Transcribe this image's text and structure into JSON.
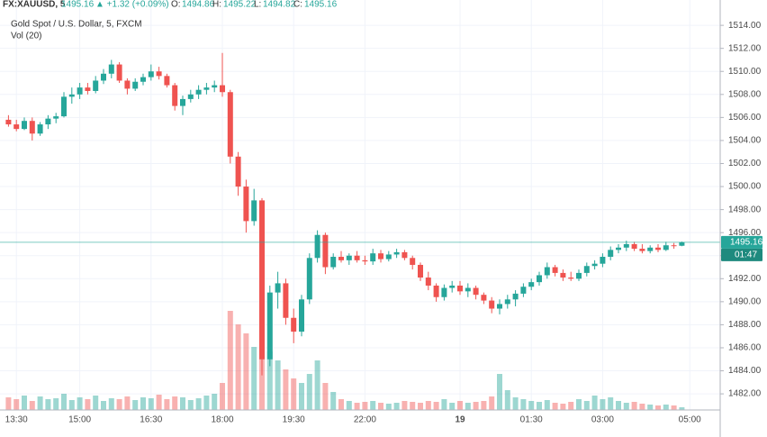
{
  "header": {
    "symbol": "FX:XAUUSD, 5",
    "last": "1495.16",
    "change": "▲ +1.32 (+0.09%)",
    "o_label": "O:",
    "o": "1494.86",
    "h_label": "H:",
    "h": "1495.22",
    "l_label": "L:",
    "l": "1494.82",
    "c_label": "C:",
    "c": "1495.16"
  },
  "chart_data": {
    "type": "candlestick",
    "title": "Gold Spot / U.S. Dollar, 5, FXCM",
    "volume_label": "Vol (20)",
    "price_label": "1495.16",
    "countdown": "01:47",
    "up_color": "#26a69a",
    "down_color": "#ef5350",
    "ylim": [
      1480.6,
      1516.2
    ],
    "yticks": [
      1482,
      1484,
      1486,
      1488,
      1490,
      1492,
      1494,
      1496,
      1498,
      1500,
      1502,
      1504,
      1506,
      1508,
      1510,
      1512,
      1514
    ],
    "yticks_format": "fixed2",
    "categories": [
      null,
      "13:30",
      null,
      null,
      null,
      null,
      null,
      null,
      null,
      "15:00",
      null,
      null,
      null,
      null,
      null,
      null,
      null,
      null,
      "16:30",
      null,
      null,
      null,
      null,
      null,
      null,
      null,
      null,
      "18:00",
      null,
      null,
      null,
      null,
      null,
      null,
      null,
      null,
      "19:30",
      null,
      null,
      null,
      null,
      null,
      null,
      null,
      null,
      "22:00",
      null,
      null,
      null,
      null,
      null,
      null,
      null,
      null,
      null,
      null,
      null,
      "19",
      null,
      null,
      null,
      null,
      null,
      null,
      null,
      null,
      "01:30",
      null,
      null,
      null,
      null,
      null,
      null,
      null,
      null,
      "03:00",
      null,
      null,
      null,
      null,
      null,
      null,
      null,
      null,
      null,
      null,
      "05:00"
    ],
    "open": [
      1505.8,
      1505.4,
      1505.0,
      1505.7,
      1504.6,
      1505.4,
      1505.9,
      1506.1,
      1507.8,
      1508.0,
      1508.6,
      1508.3,
      1509.2,
      1509.8,
      1510.6,
      1509.2,
      1508.5,
      1509.1,
      1509.5,
      1510.0,
      1509.6,
      1508.8,
      1507.0,
      1507.6,
      1508.0,
      1508.4,
      1508.6,
      1508.8,
      1508.2,
      1502.6,
      1500.0,
      1497.0,
      1498.8,
      1485.0,
      1490.8,
      1491.6,
      1488.6,
      1487.4,
      1490.2,
      1493.8,
      1495.8,
      1493.0,
      1493.9,
      1493.6,
      1494.0,
      1493.6,
      1493.5,
      1494.2,
      1493.7,
      1494.1,
      1494.3,
      1493.8,
      1493.2,
      1492.1,
      1491.4,
      1490.4,
      1491.2,
      1491.4,
      1490.9,
      1491.2,
      1490.6,
      1490.1,
      1489.4,
      1489.8,
      1490.2,
      1490.7,
      1491.3,
      1491.7,
      1492.3,
      1493.0,
      1492.5,
      1492.1,
      1492.0,
      1492.5,
      1493.1,
      1493.3,
      1493.9,
      1494.5,
      1494.7,
      1495.0,
      1494.6,
      1494.4,
      1494.7,
      1494.5,
      1494.9,
      1494.86,
      null
    ],
    "high": [
      1506.2,
      1505.8,
      1506.0,
      1506.0,
      1505.6,
      1506.2,
      1506.4,
      1508.2,
      1508.6,
      1509.0,
      1509.0,
      1509.6,
      1510.2,
      1511.0,
      1510.8,
      1509.4,
      1509.4,
      1509.8,
      1510.6,
      1510.4,
      1509.8,
      1509.0,
      1507.9,
      1508.4,
      1508.8,
      1509.0,
      1509.2,
      1511.6,
      1508.4,
      1503.0,
      1500.6,
      1499.8,
      1499.0,
      1491.4,
      1492.6,
      1492.0,
      1489.4,
      1490.6,
      1494.2,
      1496.2,
      1496.0,
      1494.2,
      1494.4,
      1494.2,
      1494.4,
      1494.0,
      1494.6,
      1494.5,
      1494.4,
      1494.6,
      1494.5,
      1494.0,
      1493.4,
      1492.6,
      1491.6,
      1491.5,
      1491.8,
      1491.8,
      1491.6,
      1491.4,
      1490.8,
      1490.4,
      1490.2,
      1490.6,
      1491.0,
      1491.6,
      1492.0,
      1492.6,
      1493.4,
      1493.2,
      1492.8,
      1492.6,
      1492.8,
      1493.4,
      1493.6,
      1494.2,
      1494.8,
      1495.0,
      1495.3,
      1495.2,
      1495.0,
      1494.9,
      1495.0,
      1495.2,
      1495.1,
      1495.22,
      null
    ],
    "low": [
      1505.2,
      1504.8,
      1504.9,
      1504.0,
      1504.4,
      1505.0,
      1505.5,
      1506.0,
      1507.2,
      1507.6,
      1508.0,
      1508.1,
      1508.9,
      1509.4,
      1509.0,
      1508.0,
      1508.3,
      1508.8,
      1509.2,
      1509.3,
      1508.6,
      1506.6,
      1506.2,
      1507.3,
      1507.6,
      1508.0,
      1508.2,
      1507.8,
      1502.0,
      1499.2,
      1496.0,
      1496.6,
      1483.6,
      1484.4,
      1489.4,
      1488.0,
      1486.4,
      1487.0,
      1489.8,
      1493.4,
      1492.4,
      1492.8,
      1493.4,
      1493.2,
      1493.4,
      1493.2,
      1493.2,
      1493.4,
      1493.5,
      1493.8,
      1493.6,
      1492.8,
      1491.8,
      1491.0,
      1490.0,
      1490.1,
      1490.8,
      1490.6,
      1490.4,
      1490.2,
      1489.8,
      1489.0,
      1488.9,
      1489.4,
      1489.6,
      1490.4,
      1491.0,
      1491.4,
      1492.0,
      1492.2,
      1491.8,
      1491.8,
      1491.8,
      1492.2,
      1492.8,
      1493.0,
      1493.6,
      1494.2,
      1494.4,
      1494.4,
      1494.2,
      1494.2,
      1494.3,
      1494.4,
      1494.6,
      1494.82,
      null
    ],
    "close": [
      1505.4,
      1505.0,
      1505.7,
      1504.6,
      1505.4,
      1505.9,
      1506.1,
      1507.8,
      1508.0,
      1508.6,
      1508.3,
      1509.2,
      1509.8,
      1510.6,
      1509.2,
      1508.5,
      1509.1,
      1509.5,
      1510.0,
      1509.6,
      1508.8,
      1507.0,
      1507.6,
      1508.0,
      1508.4,
      1508.6,
      1508.8,
      1508.2,
      1502.6,
      1500.0,
      1497.0,
      1498.8,
      1485.0,
      1490.8,
      1491.6,
      1488.6,
      1487.4,
      1490.2,
      1493.8,
      1495.8,
      1493.0,
      1493.9,
      1493.6,
      1494.0,
      1493.6,
      1493.5,
      1494.2,
      1493.7,
      1494.1,
      1494.3,
      1493.8,
      1493.2,
      1492.1,
      1491.4,
      1490.4,
      1491.2,
      1491.4,
      1490.9,
      1491.2,
      1490.6,
      1490.1,
      1489.4,
      1489.8,
      1490.2,
      1490.7,
      1491.3,
      1491.7,
      1492.3,
      1493.0,
      1492.5,
      1492.1,
      1492.0,
      1492.5,
      1493.1,
      1493.3,
      1493.9,
      1494.5,
      1494.7,
      1495.0,
      1494.6,
      1494.4,
      1494.7,
      1494.5,
      1494.9,
      1494.86,
      1495.16,
      null
    ],
    "volume": [
      14,
      12,
      16,
      10,
      15,
      12,
      13,
      18,
      11,
      14,
      12,
      16,
      10,
      13,
      12,
      15,
      11,
      14,
      13,
      17,
      12,
      15,
      14,
      11,
      13,
      16,
      18,
      30,
      110,
      95,
      85,
      70,
      75,
      65,
      55,
      45,
      35,
      30,
      40,
      55,
      30,
      20,
      12,
      10,
      8,
      9,
      10,
      8,
      7,
      8,
      10,
      9,
      8,
      10,
      9,
      12,
      8,
      10,
      8,
      9,
      10,
      15,
      40,
      22,
      14,
      12,
      10,
      9,
      11,
      8,
      7,
      9,
      12,
      10,
      16,
      12,
      14,
      10,
      8,
      9,
      7,
      6,
      5,
      6,
      5,
      3,
      null
    ]
  }
}
